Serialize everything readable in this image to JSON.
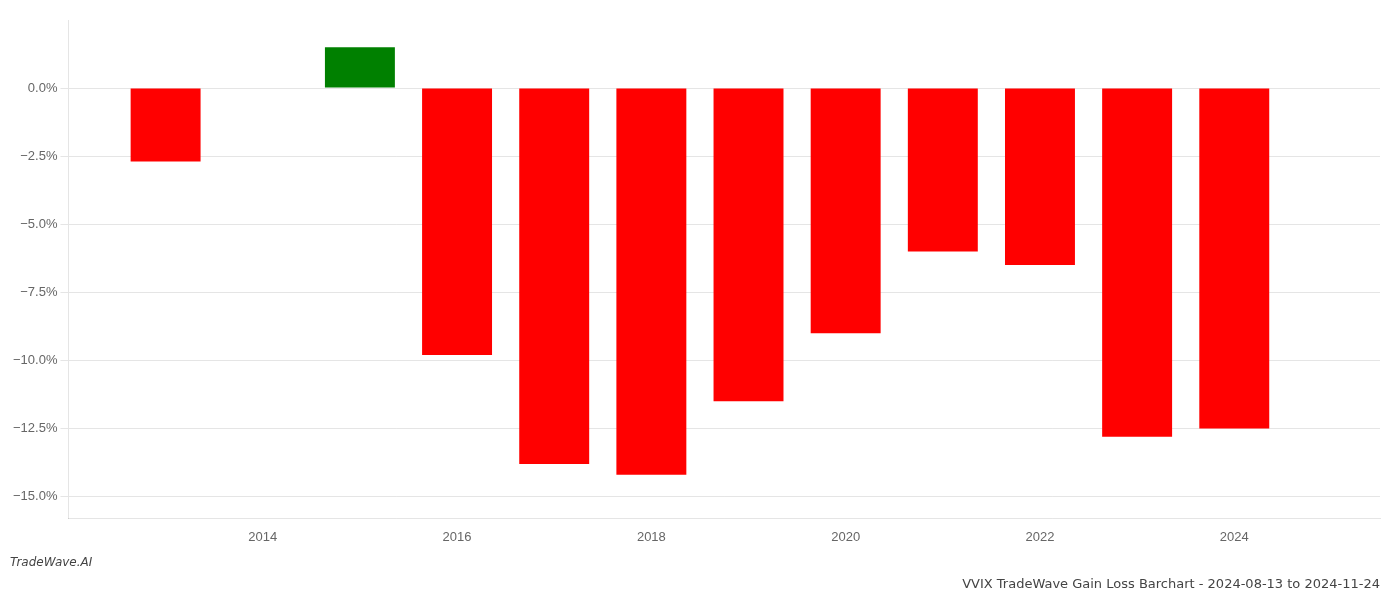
{
  "chart_data": {
    "type": "bar",
    "title": "VVIX TradeWave Gain Loss Barchart - 2024-08-13 to 2024-11-24",
    "annotations": [
      "TradeWave.AI"
    ],
    "x": [
      2013,
      2015,
      2016,
      2017,
      2018,
      2019,
      2020,
      2021,
      2022,
      2023,
      2024
    ],
    "values": [
      -2.7,
      1.5,
      -9.8,
      -13.8,
      -14.2,
      -11.5,
      -9.0,
      -6.0,
      -6.5,
      -12.8,
      -12.5
    ],
    "colors": [
      "#ff0000",
      "#008000",
      "#ff0000",
      "#ff0000",
      "#ff0000",
      "#ff0000",
      "#ff0000",
      "#ff0000",
      "#ff0000",
      "#ff0000",
      "#ff0000"
    ],
    "xlim": [
      2012.0,
      2025.5
    ],
    "xticks": [
      2014,
      2016,
      2018,
      2020,
      2022,
      2024
    ],
    "ylim": [
      -15.8,
      2.5
    ],
    "yticks": [
      {
        "value": 0.0,
        "label": "0.0%"
      },
      {
        "value": -2.5,
        "label": "−2.5%"
      },
      {
        "value": -5.0,
        "label": "−5.0%"
      },
      {
        "value": -7.5,
        "label": "−7.5%"
      },
      {
        "value": -10.0,
        "label": "−10.0%"
      },
      {
        "value": -12.5,
        "label": "−12.5%"
      },
      {
        "value": -15.0,
        "label": "−15.0%"
      }
    ],
    "grid": "y",
    "legend": false
  }
}
